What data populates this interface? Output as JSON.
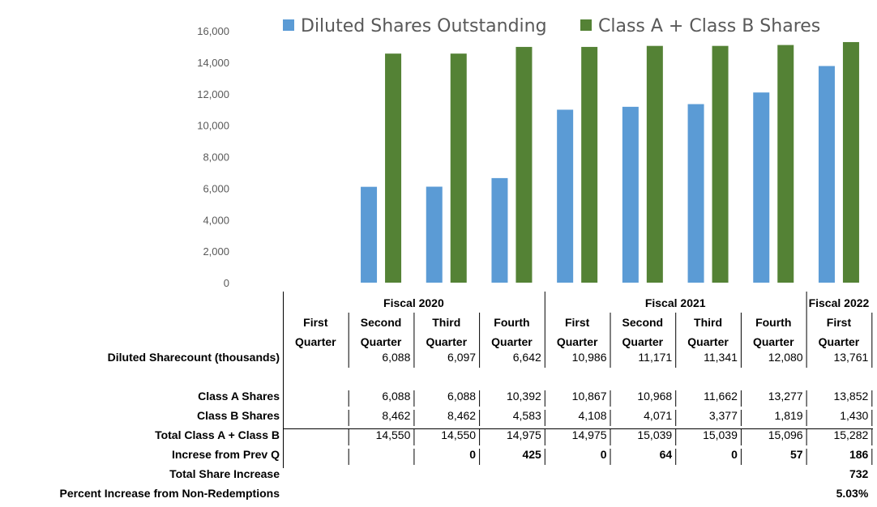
{
  "chart_data": {
    "type": "bar",
    "categories": [
      "Fiscal 2020 First Quarter",
      "Fiscal 2020 Second Quarter",
      "Fiscal 2020 Third Quarter",
      "Fiscal 2020 Fourth Quarter",
      "Fiscal 2021 First Quarter",
      "Fiscal 2021 Second Quarter",
      "Fiscal 2021 Third Quarter",
      "Fiscal 2021 Fourth Quarter",
      "Fiscal 2022 First Quarter"
    ],
    "series": [
      {
        "name": "Diluted Shares Outstanding",
        "color": "#5b9bd5",
        "values": [
          null,
          6088,
          6097,
          6642,
          10986,
          11171,
          11341,
          12080,
          13761
        ]
      },
      {
        "name": "Class A + Class B Shares",
        "color": "#548235",
        "values": [
          null,
          14550,
          14550,
          14975,
          14975,
          15039,
          15039,
          15096,
          15282
        ]
      }
    ],
    "ylim": [
      0,
      16000
    ],
    "yticks": [
      "16,000",
      "14,000",
      "12,000",
      "10,000",
      "8,000",
      "6,000",
      "4,000",
      "2,000",
      "0"
    ],
    "legend_position": "top",
    "grid": false
  },
  "table": {
    "fiscal_years": [
      "Fiscal 2020",
      "Fiscal 2021",
      "Fiscal 2022"
    ],
    "quarter_line1": [
      "First",
      "Second",
      "Third",
      "Fourth",
      "First",
      "Second",
      "Third",
      "Fourth",
      "First"
    ],
    "quarter_line2": [
      "Quarter",
      "Quarter",
      "Quarter",
      "Quarter",
      "Quarter",
      "Quarter",
      "Quarter",
      "Quarter",
      "Quarter"
    ],
    "rows": [
      {
        "label": "Diluted Sharecount (thousands)",
        "bold_values": false,
        "values": [
          "",
          "6,088",
          "6,097",
          "6,642",
          "10,986",
          "11,171",
          "11,341",
          "12,080",
          "13,761"
        ]
      },
      {
        "label": "Class A Shares",
        "bold_values": false,
        "values": [
          "",
          "6,088",
          "6,088",
          "10,392",
          "10,867",
          "10,968",
          "11,662",
          "13,277",
          "13,852"
        ]
      },
      {
        "label": "Class B Shares",
        "bold_values": false,
        "values": [
          "",
          "8,462",
          "8,462",
          "4,583",
          "4,108",
          "4,071",
          "3,377",
          "1,819",
          "1,430"
        ]
      },
      {
        "label": "Total Class A + Class B",
        "bold_values": false,
        "values": [
          "",
          "14,550",
          "14,550",
          "14,975",
          "14,975",
          "15,039",
          "15,039",
          "15,096",
          "15,282"
        ]
      },
      {
        "label": "Increse from Prev Q",
        "bold_values": true,
        "values": [
          "",
          "",
          "0",
          "425",
          "0",
          "64",
          "0",
          "57",
          "186"
        ]
      }
    ],
    "summary": [
      {
        "label": "Total Share Increase",
        "value": "732"
      },
      {
        "label": "Percent Increase from Non-Redemptions",
        "value": "5.03%"
      }
    ]
  }
}
